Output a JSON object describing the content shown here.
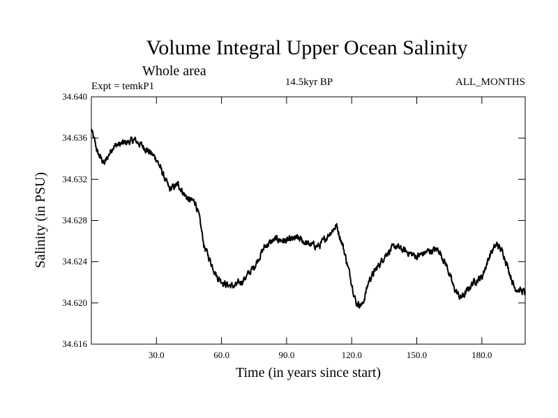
{
  "chart_data": {
    "type": "line",
    "title": "Volume Integral Upper Ocean Salinity",
    "subtitle": "Whole area",
    "expt_label": "Expt = temkP1",
    "period_label": "14.5kyr BP",
    "months_label": "ALL_MONTHS",
    "xlabel": "Time (in years since start)",
    "ylabel": "Salinity (in PSU)",
    "xlim": [
      0,
      200
    ],
    "ylim": [
      34.616,
      34.64
    ],
    "xticks": [
      30,
      60,
      90,
      120,
      150,
      180
    ],
    "xtick_labels": [
      "30.0",
      "60.0",
      "90.0",
      "120.0",
      "150.0",
      "180.0"
    ],
    "yticks": [
      34.616,
      34.62,
      34.624,
      34.628,
      34.632,
      34.636,
      34.64
    ],
    "ytick_labels": [
      "34.616",
      "34.620",
      "34.624",
      "34.628",
      "34.632",
      "34.636",
      "34.640"
    ],
    "grid": false,
    "series": [
      {
        "name": "Salinity",
        "color": "#000000",
        "noise_amplitude": 0.0006,
        "x": [
          0,
          3,
          6,
          10,
          15,
          20,
          25,
          30,
          33,
          36,
          40,
          43,
          45,
          48,
          50,
          52,
          55,
          58,
          62,
          66,
          70,
          75,
          80,
          85,
          90,
          95,
          100,
          105,
          110,
          113,
          116,
          120,
          122,
          125,
          128,
          132,
          136,
          140,
          145,
          150,
          155,
          160,
          164,
          167,
          170,
          172,
          176,
          180,
          184,
          187,
          190,
          195,
          200
        ],
        "y": [
          34.6368,
          34.6345,
          34.6335,
          34.6352,
          34.6355,
          34.6358,
          34.635,
          34.634,
          34.6325,
          34.631,
          34.6315,
          34.6305,
          34.63,
          34.6298,
          34.628,
          34.6255,
          34.624,
          34.6225,
          34.6218,
          34.6216,
          34.6222,
          34.6235,
          34.6255,
          34.6262,
          34.626,
          34.6263,
          34.6257,
          34.6255,
          34.6268,
          34.6275,
          34.6255,
          34.622,
          34.62,
          34.6198,
          34.6222,
          34.6235,
          34.6248,
          34.6255,
          34.625,
          34.6245,
          34.625,
          34.6252,
          34.6235,
          34.6215,
          34.6205,
          34.6208,
          34.622,
          34.6225,
          34.6248,
          34.6257,
          34.6248,
          34.6215,
          34.621
        ]
      }
    ]
  }
}
